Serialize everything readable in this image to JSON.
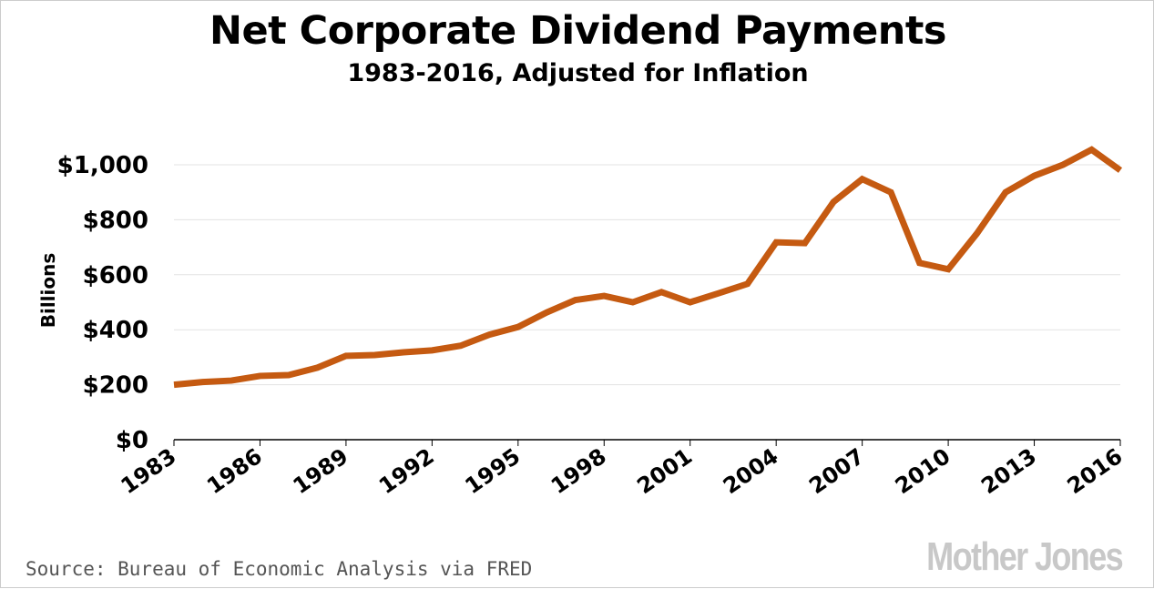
{
  "chart_data": {
    "type": "line",
    "title": "Net Corporate Dividend Payments",
    "subtitle": "1983-2016, Adjusted for Inflation",
    "xlabel": "",
    "ylabel": "Billions",
    "ylim": [
      0,
      1000
    ],
    "xlim": [
      1983,
      2016
    ],
    "grid": true,
    "line_color": "#c55a11",
    "yticks": [
      0,
      200,
      400,
      600,
      800,
      1000
    ],
    "ytick_labels": [
      "$0",
      "$200",
      "$400",
      "$600",
      "$800",
      "$1,000"
    ],
    "xticks": [
      "1983",
      "1986",
      "1989",
      "1992",
      "1995",
      "1998",
      "2001",
      "2004",
      "2007",
      "2010",
      "2013",
      "2016"
    ],
    "x": [
      1983,
      1984,
      1985,
      1986,
      1987,
      1988,
      1989,
      1990,
      1991,
      1992,
      1993,
      1994,
      1995,
      1996,
      1997,
      1998,
      1999,
      2000,
      2001,
      2002,
      2003,
      2004,
      2005,
      2006,
      2007,
      2008,
      2009,
      2010,
      2011,
      2012,
      2013,
      2014,
      2015,
      2016
    ],
    "values": [
      200,
      210,
      215,
      232,
      235,
      262,
      305,
      308,
      318,
      325,
      342,
      382,
      410,
      463,
      508,
      523,
      500,
      537,
      500,
      533,
      567,
      718,
      715,
      865,
      948,
      900,
      643,
      620,
      750,
      900,
      960,
      1000,
      1055,
      980
    ]
  },
  "source": "Source: Bureau of Economic Analysis via FRED",
  "logo": "Mother Jones"
}
